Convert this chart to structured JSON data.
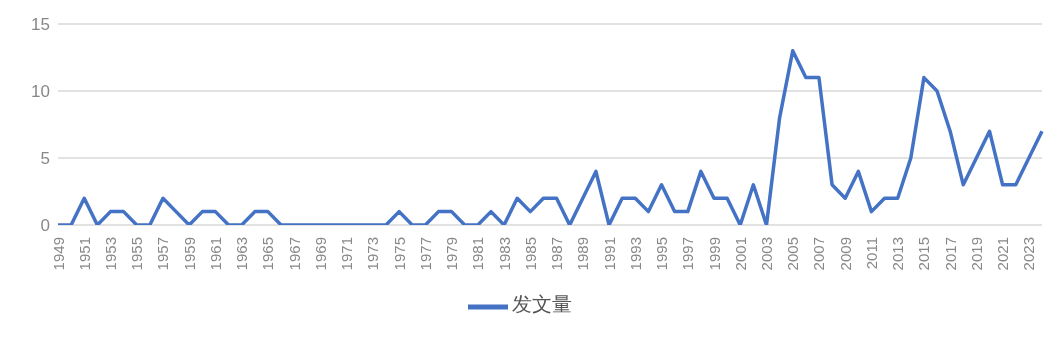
{
  "chart_data": {
    "type": "line",
    "categories": [
      "1949",
      null,
      "1951",
      null,
      "1953",
      null,
      "1955",
      null,
      "1957",
      null,
      "1959",
      null,
      "1961",
      null,
      "1963",
      null,
      "1965",
      null,
      "1967",
      null,
      "1969",
      null,
      "1971",
      null,
      "1973",
      null,
      "1975",
      null,
      "1977",
      null,
      "1979",
      null,
      "1981",
      null,
      "1983",
      null,
      "1985",
      null,
      "1987",
      null,
      "1989",
      null,
      "1991",
      null,
      "1993",
      null,
      "1995",
      null,
      "1997",
      null,
      "1999",
      null,
      "2001",
      null,
      "2003",
      null,
      "2005",
      null,
      "2007",
      null,
      "2009",
      null,
      "2011",
      null,
      "2013",
      null,
      "2015",
      null,
      "2017",
      null,
      "2019",
      null,
      "2021",
      null,
      "2023",
      null
    ],
    "series": [
      {
        "name": "发文量",
        "color": "#4472c4",
        "values": [
          0,
          0,
          2,
          0,
          1,
          1,
          0,
          0,
          2,
          1,
          0,
          1,
          1,
          0,
          0,
          1,
          1,
          0,
          0,
          0,
          0,
          0,
          0,
          0,
          0,
          0,
          1,
          0,
          0,
          1,
          1,
          0,
          0,
          1,
          0,
          2,
          1,
          2,
          2,
          0,
          2,
          4,
          0,
          2,
          2,
          1,
          3,
          1,
          1,
          4,
          2,
          2,
          0,
          3,
          0,
          8,
          13,
          11,
          11,
          3,
          2,
          4,
          1,
          2,
          2,
          5,
          11,
          10,
          7,
          3,
          5,
          7,
          3,
          3,
          5,
          7
        ]
      }
    ],
    "ylim": [
      0,
      15
    ],
    "yticks": [
      0,
      5,
      10,
      15
    ],
    "grid": "y",
    "legend": "bottom",
    "marker": "none",
    "line_style": "solid"
  }
}
